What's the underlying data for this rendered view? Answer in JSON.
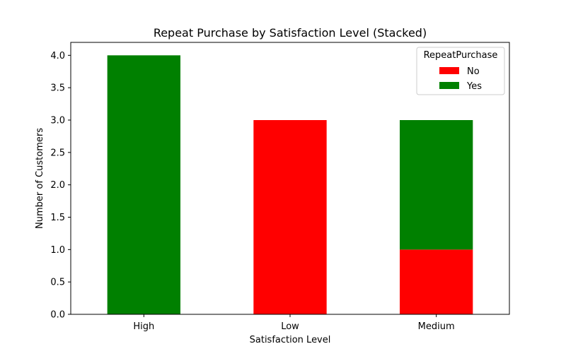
{
  "chart_data": {
    "type": "bar",
    "stacked": true,
    "title": "Repeat Purchase by Satisfaction Level (Stacked)",
    "xlabel": "Satisfaction Level",
    "ylabel": "Number of Customers",
    "categories": [
      "High",
      "Low",
      "Medium"
    ],
    "series": [
      {
        "name": "No",
        "values": [
          0,
          3,
          1
        ],
        "color": "#ff0000"
      },
      {
        "name": "Yes",
        "values": [
          4,
          0,
          2
        ],
        "color": "#008000"
      }
    ],
    "ylim": [
      0,
      4.2
    ],
    "yticks": [
      0.0,
      0.5,
      1.0,
      1.5,
      2.0,
      2.5,
      3.0,
      3.5,
      4.0
    ],
    "ytick_labels": [
      "0.0",
      "0.5",
      "1.0",
      "1.5",
      "2.0",
      "2.5",
      "3.0",
      "3.5",
      "4.0"
    ],
    "grid": false,
    "legend": {
      "title": "RepeatPurchase",
      "placement": "top-right"
    }
  }
}
